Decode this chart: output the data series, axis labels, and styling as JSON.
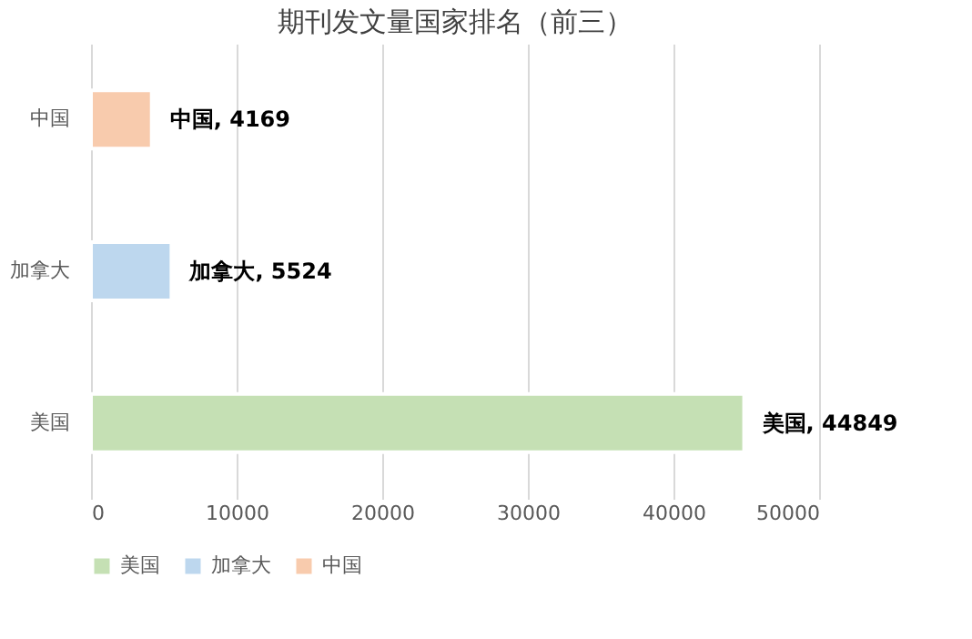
{
  "chart_data": {
    "type": "bar",
    "orientation": "horizontal",
    "title": "期刊发文量国家排名（前三）",
    "categories": [
      "中国",
      "加拿大",
      "美国"
    ],
    "series": [
      {
        "name": "美国",
        "color": "#c5e0b4",
        "values": [
          null,
          null,
          44849
        ],
        "value_labels": [
          null,
          null,
          "美国, 44849"
        ]
      },
      {
        "name": "加拿大",
        "color": "#bdd7ee",
        "values": [
          null,
          5524,
          null
        ],
        "value_labels": [
          null,
          "加拿大, 5524",
          null
        ]
      },
      {
        "name": "中国",
        "color": "#f8cbad",
        "values": [
          4169,
          null,
          null
        ],
        "value_labels": [
          "中国, 4169",
          null,
          null
        ]
      }
    ],
    "xlim": [
      0,
      50000
    ],
    "xticks": [
      0,
      10000,
      20000,
      30000,
      40000,
      50000
    ],
    "grid": "x",
    "legend": "bottom"
  }
}
